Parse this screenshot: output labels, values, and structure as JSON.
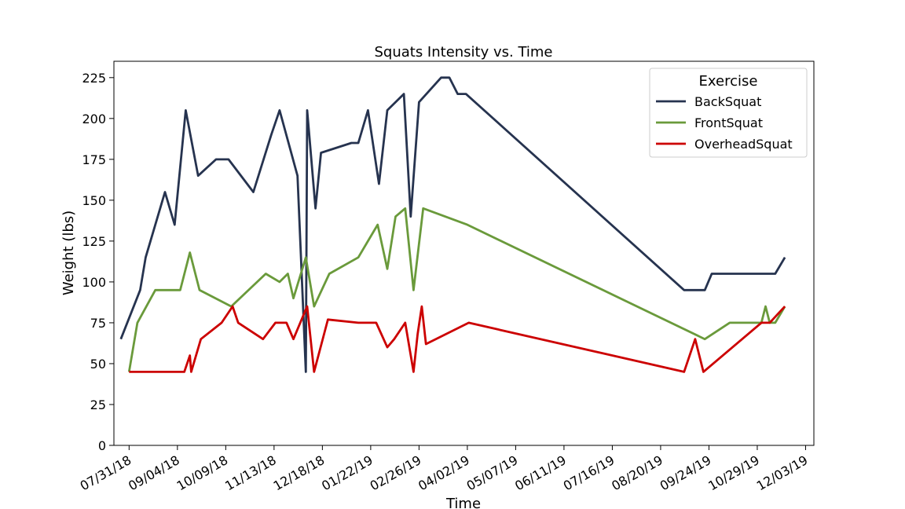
{
  "chart_data": {
    "type": "line",
    "title": "Squats Intensity vs. Time",
    "xlabel": "Time",
    "ylabel": "Weight (lbs)",
    "xlim": [
      "2018-07-20",
      "2019-12-09"
    ],
    "ylim": [
      0,
      235
    ],
    "grid": false,
    "legend": {
      "title": "Exercise",
      "position": "top-right"
    },
    "x_ticks": [
      "2018-07-31",
      "2018-09-04",
      "2018-10-09",
      "2018-11-13",
      "2018-12-18",
      "2019-01-22",
      "2019-02-26",
      "2019-04-02",
      "2019-05-07",
      "2019-06-11",
      "2019-07-16",
      "2019-08-20",
      "2019-09-24",
      "2019-10-29",
      "2019-12-03"
    ],
    "x_tick_labels": [
      "07/31/18",
      "09/04/18",
      "10/09/18",
      "11/13/18",
      "12/18/18",
      "01/22/19",
      "02/26/19",
      "04/02/19",
      "05/07/19",
      "06/11/19",
      "07/16/19",
      "08/20/19",
      "09/24/19",
      "10/29/19",
      "12/03/19"
    ],
    "y_ticks": [
      0,
      25,
      50,
      75,
      100,
      125,
      150,
      175,
      200,
      225
    ],
    "series": [
      {
        "name": "BackSquat",
        "color": "#26334f",
        "points": [
          [
            "2018-07-25",
            65
          ],
          [
            "2018-08-08",
            95
          ],
          [
            "2018-08-12",
            115
          ],
          [
            "2018-08-26",
            155
          ],
          [
            "2018-09-02",
            135
          ],
          [
            "2018-09-10",
            205
          ],
          [
            "2018-09-19",
            165
          ],
          [
            "2018-10-02",
            175
          ],
          [
            "2018-10-11",
            175
          ],
          [
            "2018-10-29",
            155
          ],
          [
            "2018-11-11",
            190
          ],
          [
            "2018-11-17",
            205
          ],
          [
            "2018-11-30",
            165
          ],
          [
            "2018-12-06",
            45
          ],
          [
            "2018-12-07",
            205
          ],
          [
            "2018-12-13",
            145
          ],
          [
            "2018-12-17",
            179
          ],
          [
            "2019-01-08",
            185
          ],
          [
            "2019-01-13",
            185
          ],
          [
            "2019-01-20",
            205
          ],
          [
            "2019-01-28",
            160
          ],
          [
            "2019-02-03",
            205
          ],
          [
            "2019-02-15",
            215
          ],
          [
            "2019-02-20",
            140
          ],
          [
            "2019-02-26",
            210
          ],
          [
            "2019-03-14",
            225
          ],
          [
            "2019-03-20",
            225
          ],
          [
            "2019-03-26",
            215
          ],
          [
            "2019-04-01",
            215
          ],
          [
            "2019-09-06",
            95
          ],
          [
            "2019-09-21",
            95
          ],
          [
            "2019-09-26",
            105
          ],
          [
            "2019-11-11",
            105
          ],
          [
            "2019-11-18",
            115
          ]
        ]
      },
      {
        "name": "FrontSquat",
        "color": "#6a9a3b",
        "points": [
          [
            "2018-07-31",
            45
          ],
          [
            "2018-08-06",
            75
          ],
          [
            "2018-08-19",
            95
          ],
          [
            "2018-09-06",
            95
          ],
          [
            "2018-09-13",
            118
          ],
          [
            "2018-09-20",
            95
          ],
          [
            "2018-10-13",
            85
          ],
          [
            "2018-11-07",
            105
          ],
          [
            "2018-11-17",
            100
          ],
          [
            "2018-11-23",
            105
          ],
          [
            "2018-11-27",
            90
          ],
          [
            "2018-12-06",
            115
          ],
          [
            "2018-12-12",
            85
          ],
          [
            "2018-12-23",
            105
          ],
          [
            "2019-01-13",
            115
          ],
          [
            "2019-01-20",
            125
          ],
          [
            "2019-01-27",
            135
          ],
          [
            "2019-02-03",
            108
          ],
          [
            "2019-02-09",
            140
          ],
          [
            "2019-02-16",
            145
          ],
          [
            "2019-02-22",
            95
          ],
          [
            "2019-02-29",
            145
          ],
          [
            "2019-04-02",
            135
          ],
          [
            "2019-09-21",
            65
          ],
          [
            "2019-10-09",
            75
          ],
          [
            "2019-10-25",
            75
          ],
          [
            "2019-11-01",
            75
          ],
          [
            "2019-11-04",
            85
          ],
          [
            "2019-11-07",
            75
          ],
          [
            "2019-11-11",
            75
          ],
          [
            "2019-11-18",
            85
          ]
        ]
      },
      {
        "name": "OverheadSquat",
        "color": "#cc0000",
        "points": [
          [
            "2018-07-31",
            45
          ],
          [
            "2018-09-09",
            45
          ],
          [
            "2018-09-13",
            55
          ],
          [
            "2018-09-14",
            45
          ],
          [
            "2018-09-21",
            65
          ],
          [
            "2018-10-06",
            75
          ],
          [
            "2018-10-14",
            85
          ],
          [
            "2018-10-18",
            75
          ],
          [
            "2018-11-05",
            65
          ],
          [
            "2018-11-14",
            75
          ],
          [
            "2018-11-22",
            75
          ],
          [
            "2018-11-27",
            65
          ],
          [
            "2018-12-02",
            75
          ],
          [
            "2018-12-07",
            85
          ],
          [
            "2018-12-12",
            45
          ],
          [
            "2018-12-22",
            77
          ],
          [
            "2019-01-13",
            75
          ],
          [
            "2019-01-26",
            75
          ],
          [
            "2019-02-03",
            60
          ],
          [
            "2019-02-08",
            65
          ],
          [
            "2019-02-16",
            75
          ],
          [
            "2019-02-22",
            45
          ],
          [
            "2019-02-25",
            68
          ],
          [
            "2019-02-28",
            85
          ],
          [
            "2019-03-03",
            62
          ],
          [
            "2019-04-03",
            75
          ],
          [
            "2019-09-06",
            45
          ],
          [
            "2019-09-14",
            65
          ],
          [
            "2019-09-20",
            45
          ],
          [
            "2019-11-01",
            75
          ],
          [
            "2019-11-07",
            75
          ],
          [
            "2019-11-18",
            85
          ]
        ]
      }
    ]
  }
}
